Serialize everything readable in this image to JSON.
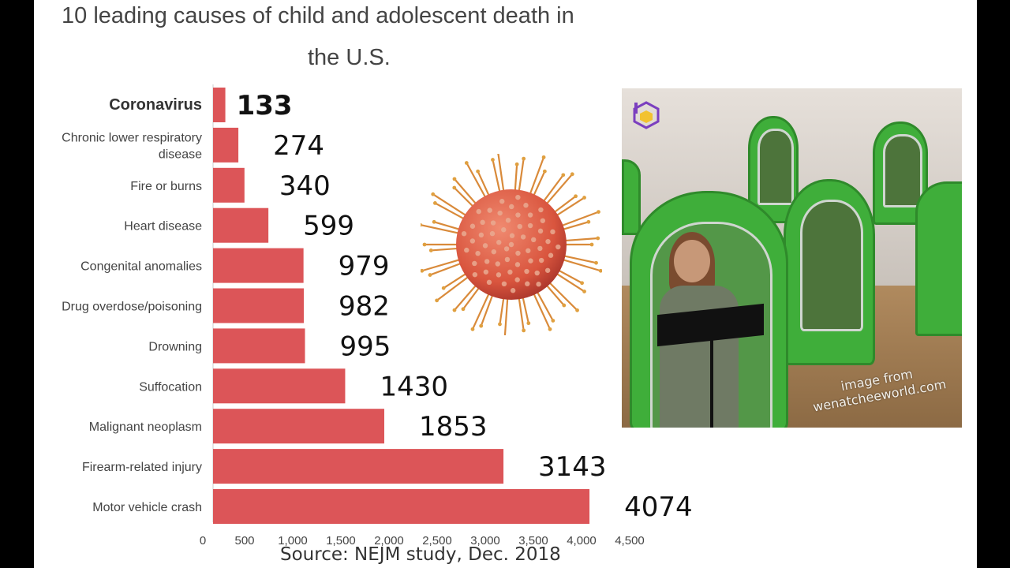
{
  "title_line1": "10 leading causes of child and adolescent death in",
  "title_line2": "the U.S.",
  "source": "Source: NEJM study, Dec. 2018",
  "photo_credit_line1": "image from",
  "photo_credit_line2": "wenatcheeworld.com",
  "colors": {
    "bar": "#dc5558",
    "background": "#ffffff",
    "frame": "#000000",
    "tent_green": "#3fae3a",
    "virus_red": "#d9553e"
  },
  "icons": [
    "virus-illustration",
    "channel-logo-icon"
  ],
  "chart_data": {
    "type": "bar",
    "orientation": "horizontal",
    "title": "10 leading causes of child and adolescent death in the U.S.",
    "categories": [
      [
        "Coronavirus"
      ],
      [
        "Chronic lower respiratory",
        "disease"
      ],
      [
        "Fire or burns"
      ],
      [
        "Heart disease"
      ],
      [
        "Congenital anomalies"
      ],
      [
        "Drug overdose/poisoning"
      ],
      [
        "Drowning"
      ],
      [
        "Suffocation"
      ],
      [
        "Malignant neoplasm"
      ],
      [
        "Firearm-related injury"
      ],
      [
        "Motor vehicle crash"
      ]
    ],
    "values": [
      133,
      274,
      340,
      599,
      979,
      982,
      995,
      1430,
      1853,
      3143,
      4074
    ],
    "value_labels": [
      "133",
      "274",
      "340",
      "599",
      "979",
      "982",
      "995",
      "1430",
      "1853",
      "3143",
      "4074"
    ],
    "highlight_index": 0,
    "x_ticks": [
      0,
      500,
      1000,
      1500,
      2000,
      2500,
      3000,
      3500,
      4000,
      4500
    ],
    "x_tick_labels": [
      "0",
      "500",
      "1,000",
      "1,500",
      "2,000",
      "2,500",
      "3,000",
      "3,500",
      "4,000",
      "4,500"
    ],
    "xlim": [
      0,
      4500
    ],
    "grid": false,
    "legend": "none"
  }
}
